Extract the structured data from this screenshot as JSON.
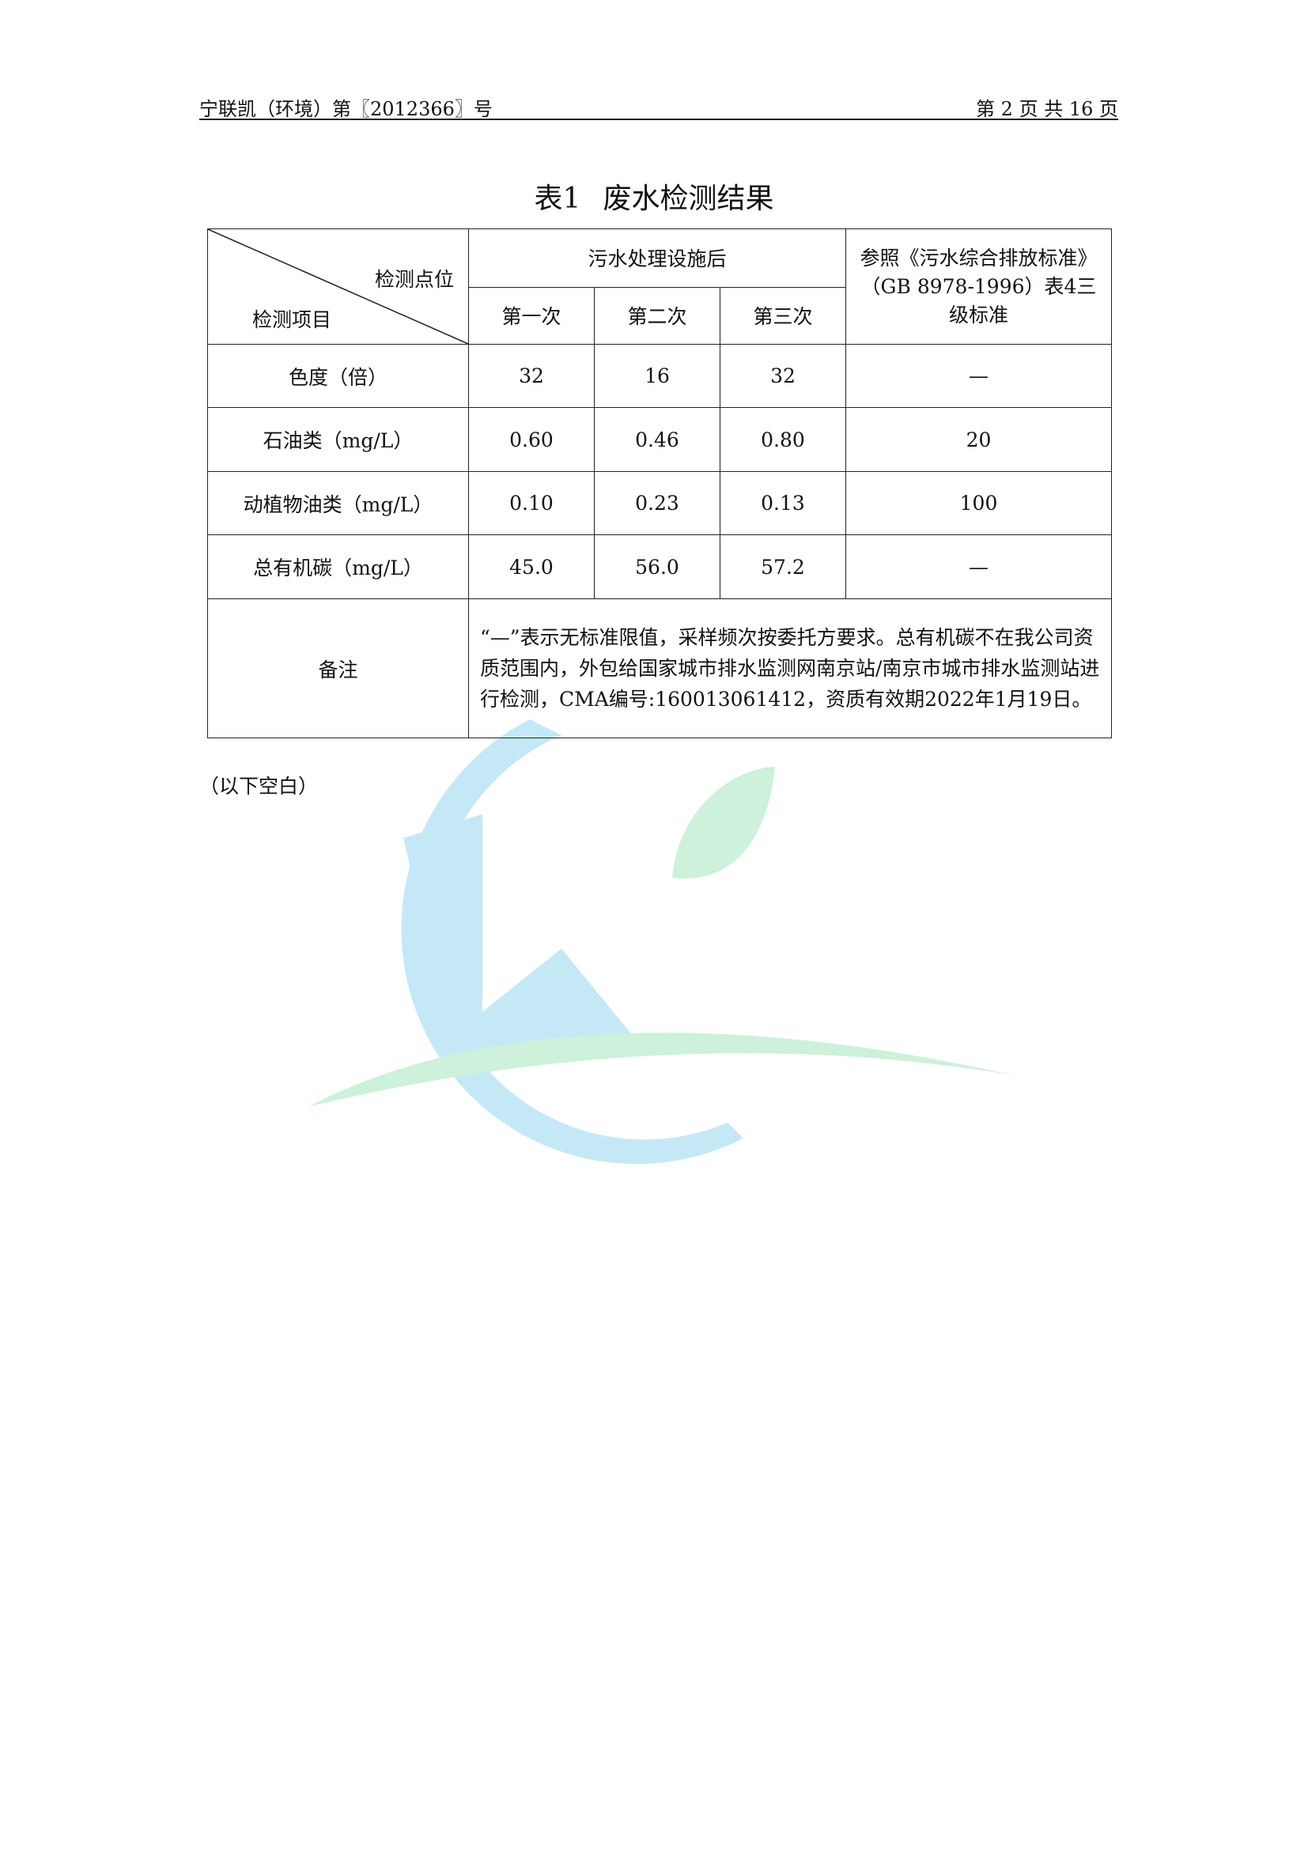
{
  "header": {
    "doc_no": "宁联凯（环境）第〖2012366〗号",
    "page": "第 2 页 共 16 页"
  },
  "title": {
    "number": "表1",
    "text": "废水检测结果"
  },
  "table": {
    "corner_top": "检测点位",
    "corner_bottom": "检测项目",
    "group_header": "污水处理设施后",
    "standard_header": "参照《污水综合排放标准》（GB 8978-1996）表4三级标准",
    "sub_headers": [
      "第一次",
      "第二次",
      "第三次"
    ],
    "rows": [
      {
        "item": "色度（倍）",
        "values": [
          "32",
          "16",
          "32"
        ],
        "standard": "—"
      },
      {
        "item": "石油类（mg/L）",
        "values": [
          "0.60",
          "0.46",
          "0.80"
        ],
        "standard": "20"
      },
      {
        "item": "动植物油类（mg/L）",
        "values": [
          "0.10",
          "0.23",
          "0.13"
        ],
        "standard": "100"
      },
      {
        "item": "总有机碳（mg/L）",
        "values": [
          "45.0",
          "56.0",
          "57.2"
        ],
        "standard": "—"
      }
    ],
    "note_label": "备注",
    "note": "“—”表示无标准限值，采样频次按委托方要求。总有机碳不在我公司资质范围内，外包给国家城市排水监测网南京站/南京市城市排水监测站进行检测，CMA编号:160013061412，资质有效期2022年1月19日。"
  },
  "footer_note": "（以下空白）",
  "watermark": {
    "colors": {
      "blue": "#bfe6f7",
      "green": "#c8f0d8"
    }
  }
}
